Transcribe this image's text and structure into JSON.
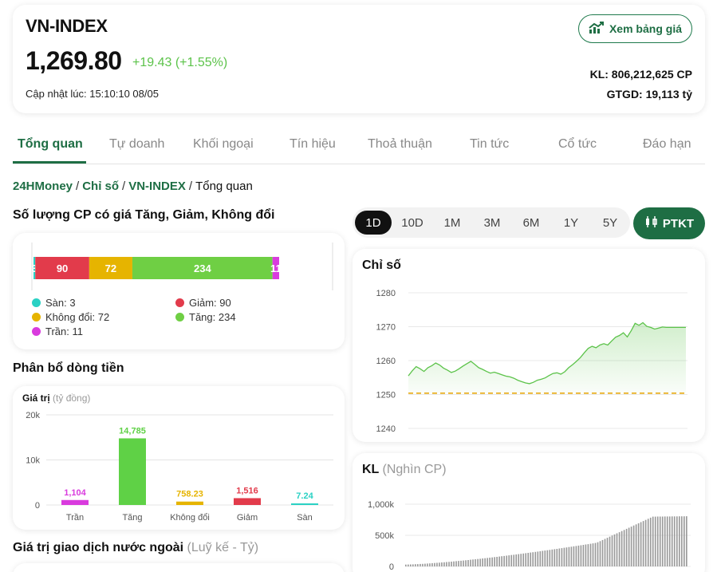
{
  "header": {
    "index_name": "VN-INDEX",
    "value": "1,269.80",
    "change": "+19.43 (+1.55%)",
    "updated": "Cập nhật lúc: 15:10:10 08/05",
    "price_button": "Xem bảng giá",
    "volume": "KL: 806,212,625 CP",
    "value_traded": "GTGD: 19,113 tỷ",
    "accent": "#1e6e44",
    "up_color": "#5cc34a"
  },
  "tabs": [
    {
      "label": "Tổng quan",
      "active": true
    },
    {
      "label": "Tự doanh"
    },
    {
      "label": "Khối ngoại"
    },
    {
      "label": "Tín hiệu"
    },
    {
      "label": "Thoả thuận"
    },
    {
      "label": "Tin tức"
    },
    {
      "label": "Cổ tức"
    },
    {
      "label": "Đáo hạn"
    }
  ],
  "breadcrumb": {
    "home": "24HMoney",
    "section": "Chỉ số",
    "index": "VN-INDEX",
    "current": "Tổng quan"
  },
  "stock_count": {
    "title": "Số lượng CP có giá Tăng, Giảm, Không đổi",
    "segments": [
      {
        "key": "san",
        "value": 3,
        "color": "#2ad1c4"
      },
      {
        "key": "giam",
        "value": 90,
        "color": "#e23b4b"
      },
      {
        "key": "khongdoi",
        "value": 72,
        "color": "#e6b400"
      },
      {
        "key": "tang",
        "value": 234,
        "color": "#6fcf44"
      },
      {
        "key": "tran",
        "value": 11,
        "color": "#d93bde"
      }
    ],
    "legend": {
      "san": "Sàn: 3",
      "giam": "Giảm: 90",
      "khongdoi": "Không đổi: 72",
      "tang": "Tăng: 234",
      "tran": "Trần: 11"
    }
  },
  "money_flow": {
    "title": "Phân bổ dòng tiền",
    "value_label": "Giá trị",
    "unit": "(tỷ đồng)",
    "y_ticks": [
      "20k",
      "10k",
      "0"
    ],
    "bars": [
      {
        "label": "Trần",
        "value": 1104,
        "display": "1,104",
        "color": "#d93bde"
      },
      {
        "label": "Tăng",
        "value": 14785,
        "display": "14,785",
        "color": "#5fd146"
      },
      {
        "label": "Không đổi",
        "value": 758.23,
        "display": "758.23",
        "color": "#e6b400"
      },
      {
        "label": "Giảm",
        "value": 1516,
        "display": "1,516",
        "color": "#e23b4b"
      },
      {
        "label": "Sàn",
        "value": 7.24,
        "display": "7.24",
        "color": "#2ad1c4"
      }
    ]
  },
  "foreign": {
    "title": "Giá trị giao dịch nước ngoài",
    "unit": "(Luỹ kế - Tỷ)"
  },
  "periods": [
    {
      "label": "1D",
      "active": true
    },
    {
      "label": "10D"
    },
    {
      "label": "1M"
    },
    {
      "label": "3M"
    },
    {
      "label": "6M"
    },
    {
      "label": "1Y"
    },
    {
      "label": "5Y"
    }
  ],
  "ptkt_label": "PTKT",
  "index_chart": {
    "title": "Chỉ số",
    "y_ticks": [
      "1280",
      "1270",
      "1260",
      "1250",
      "1240"
    ],
    "reference": 1250.37,
    "ylim": [
      1240,
      1280
    ],
    "series": [
      1255.5,
      1257,
      1258.2,
      1257.6,
      1256.8,
      1257.9,
      1258.5,
      1259.3,
      1258.7,
      1257.8,
      1257.2,
      1256.5,
      1256.9,
      1257.6,
      1258.4,
      1259.1,
      1259.8,
      1258.9,
      1257.9,
      1257.4,
      1256.8,
      1256.3,
      1256.6,
      1256.2,
      1255.8,
      1255.4,
      1255.2,
      1254.8,
      1254.2,
      1253.8,
      1253.4,
      1253.2,
      1253.6,
      1254.2,
      1254.5,
      1254.9,
      1255.6,
      1256.2,
      1256.4,
      1256.0,
      1256.7,
      1257.9,
      1258.8,
      1259.8,
      1260.9,
      1262.3,
      1263.6,
      1264.2,
      1263.8,
      1264.6,
      1265.0,
      1264.6,
      1265.8,
      1266.9,
      1267.4,
      1268.2,
      1267.0,
      1268.8,
      1271.0,
      1270.4,
      1271.2,
      1270.1,
      1269.8,
      1269.3,
      1269.6,
      1269.9,
      1269.8,
      1269.8,
      1269.8,
      1269.8,
      1269.8,
      1269.8
    ]
  },
  "volume_chart": {
    "title": "KL",
    "unit": "(Nghìn CP)",
    "y_ticks": [
      "1,000k",
      "500k",
      "0"
    ],
    "ymax": 1000000,
    "final": 806212
  }
}
